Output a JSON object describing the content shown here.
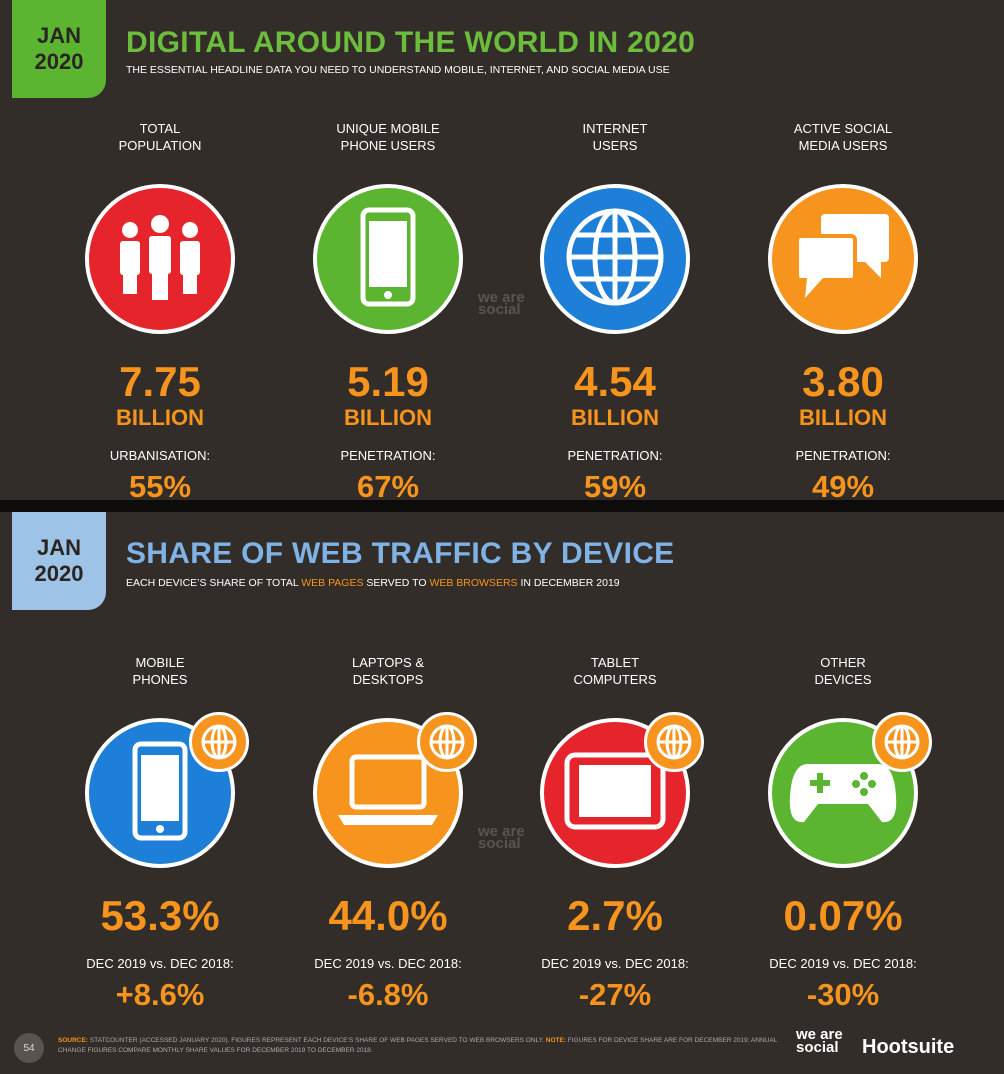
{
  "panels": [
    {
      "badge": [
        "JAN",
        "2020"
      ],
      "title": "DIGITAL AROUND THE WORLD IN 2020",
      "subtitle": [
        "THE ESSENTIAL HEADLINE DATA YOU NEED TO UNDERSTAND MOBILE, INTERNET, AND SOCIAL MEDIA USE"
      ],
      "items": [
        {
          "label": [
            "TOTAL",
            "POPULATION"
          ],
          "value": "7.75",
          "unit": "BILLION",
          "note": "URBANISATION:",
          "note_value": "55%"
        },
        {
          "label": [
            "UNIQUE MOBILE",
            "PHONE USERS"
          ],
          "value": "5.19",
          "unit": "BILLION",
          "note": "PENETRATION:",
          "note_value": "67%"
        },
        {
          "label": [
            "INTERNET",
            "USERS"
          ],
          "value": "4.54",
          "unit": "BILLION",
          "note": "PENETRATION:",
          "note_value": "59%"
        },
        {
          "label": [
            "ACTIVE SOCIAL",
            "MEDIA USERS"
          ],
          "value": "3.80",
          "unit": "BILLION",
          "note": "PENETRATION:",
          "note_value": "49%"
        }
      ]
    },
    {
      "badge": [
        "JAN",
        "2020"
      ],
      "title": "SHARE OF WEB TRAFFIC BY DEVICE",
      "subtitle": [
        "EACH DEVICE’S SHARE OF TOTAL ",
        "WEB PAGES",
        " SERVED TO ",
        "WEB BROWSERS",
        " IN DECEMBER 2019"
      ],
      "items": [
        {
          "label": [
            "MOBILE",
            "PHONES"
          ],
          "value": "53.3%",
          "note": "DEC 2019 vs. DEC 2018:",
          "note_value": "+8.6%"
        },
        {
          "label": [
            "LAPTOPS &",
            "DESKTOPS"
          ],
          "value": "44.0%",
          "note": "DEC 2019 vs. DEC 2018:",
          "note_value": "-6.8%"
        },
        {
          "label": [
            "TABLET",
            "COMPUTERS"
          ],
          "value": "2.7%",
          "note": "DEC 2019 vs. DEC 2018:",
          "note_value": "-27%"
        },
        {
          "label": [
            "OTHER",
            "DEVICES"
          ],
          "value": "0.07%",
          "note": "DEC 2019 vs. DEC 2018:",
          "note_value": "-30%"
        }
      ]
    }
  ],
  "watermark": "we are social",
  "footer": {
    "page": "54",
    "source_label": "SOURCE:",
    "source_text": " STATCOUNTER (ACCESSED JANUARY 2020). FIGURES REPRESENT EACH DEVICE’S SHARE OF WEB PAGES SERVED TO WEB BROWSERS ONLY. ",
    "note_label": "NOTE:",
    "note_text": " FIGURES FOR DEVICE SHARE ARE FOR DECEMBER 2019; ANNUAL CHANGE FIGURES COMPARE MONTHLY SHARE VALUES FOR DECEMBER 2019 TO DECEMBER 2018.",
    "logo_left": "we are social",
    "logo_right": "Hootsuite"
  }
}
